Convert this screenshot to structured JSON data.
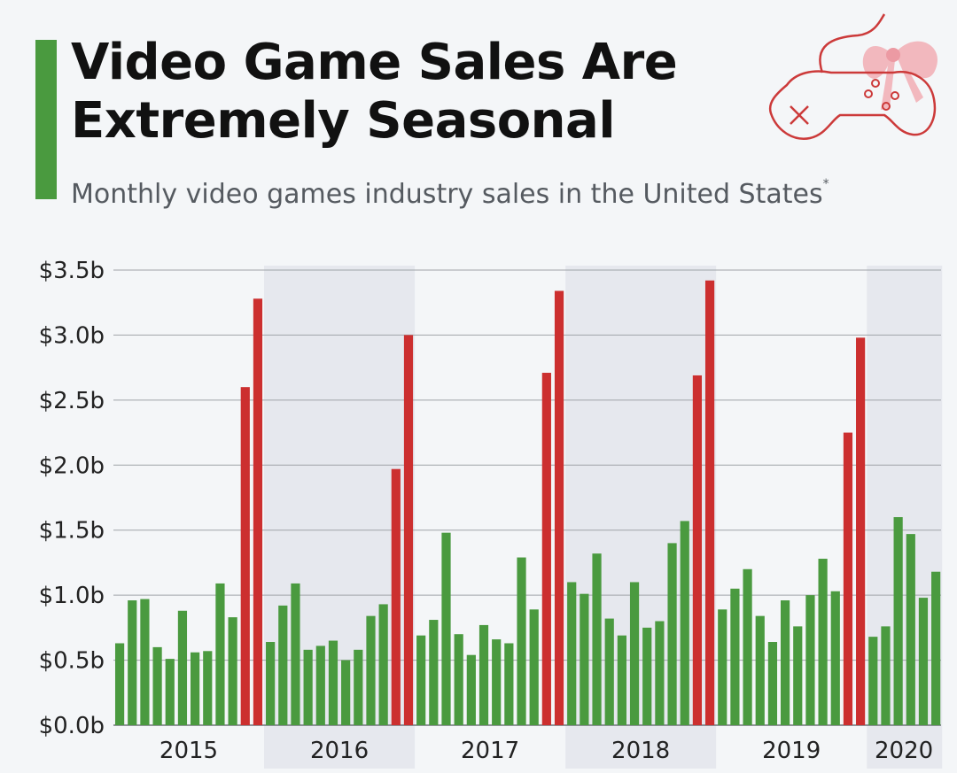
{
  "header": {
    "title_line1": "Video Game Sales Are",
    "title_line2": "Extremely Seasonal",
    "subtitle": "Monthly video games industry sales in the United States",
    "footnote_marker": "*"
  },
  "icon": {
    "name": "gamepad-with-bow-icon"
  },
  "colors": {
    "accent": "#4a9a3f",
    "green_bar": "#4a9a3f",
    "red_bar": "#cc2f2f",
    "band": "#e6e8ee",
    "grid": "#9fa3a8",
    "axis_text": "#222222",
    "icon_stroke": "#cc3a3a",
    "icon_bow": "#f2b8be"
  },
  "chart_data": {
    "type": "bar",
    "title": "Video Game Sales Are Extremely Seasonal",
    "subtitle": "Monthly video games industry sales in the United States",
    "unit": "billion USD",
    "y_ticks": [
      "$0.0b",
      "$0.5b",
      "$1.0b",
      "$1.5b",
      "$2.0b",
      "$2.5b",
      "$3.0b",
      "$3.5b"
    ],
    "ylim": [
      0,
      3.5
    ],
    "grid": true,
    "shaded_years": [
      "2016",
      "2018",
      "2020"
    ],
    "highlight_months": [
      "Nov",
      "Dec"
    ],
    "years": [
      {
        "label": "2015",
        "values": [
          0.63,
          0.96,
          0.97,
          0.6,
          0.51,
          0.88,
          0.56,
          0.57,
          1.09,
          0.83,
          2.6,
          3.28
        ]
      },
      {
        "label": "2016",
        "values": [
          0.64,
          0.92,
          1.09,
          0.58,
          0.61,
          0.65,
          0.5,
          0.58,
          0.84,
          0.93,
          1.97,
          3.0
        ]
      },
      {
        "label": "2017",
        "values": [
          0.69,
          0.81,
          1.48,
          0.7,
          0.54,
          0.77,
          0.66,
          0.63,
          1.29,
          0.89,
          2.71,
          3.34
        ]
      },
      {
        "label": "2018",
        "values": [
          1.1,
          1.01,
          1.32,
          0.82,
          0.69,
          1.1,
          0.75,
          0.8,
          1.4,
          1.57,
          2.69,
          3.42
        ]
      },
      {
        "label": "2019",
        "values": [
          0.89,
          1.05,
          1.2,
          0.84,
          0.64,
          0.96,
          0.76,
          1.0,
          1.28,
          1.03,
          2.25,
          2.98
        ]
      },
      {
        "label": "2020",
        "values": [
          0.68,
          0.76,
          1.6,
          1.47,
          0.98,
          1.18
        ]
      }
    ]
  }
}
